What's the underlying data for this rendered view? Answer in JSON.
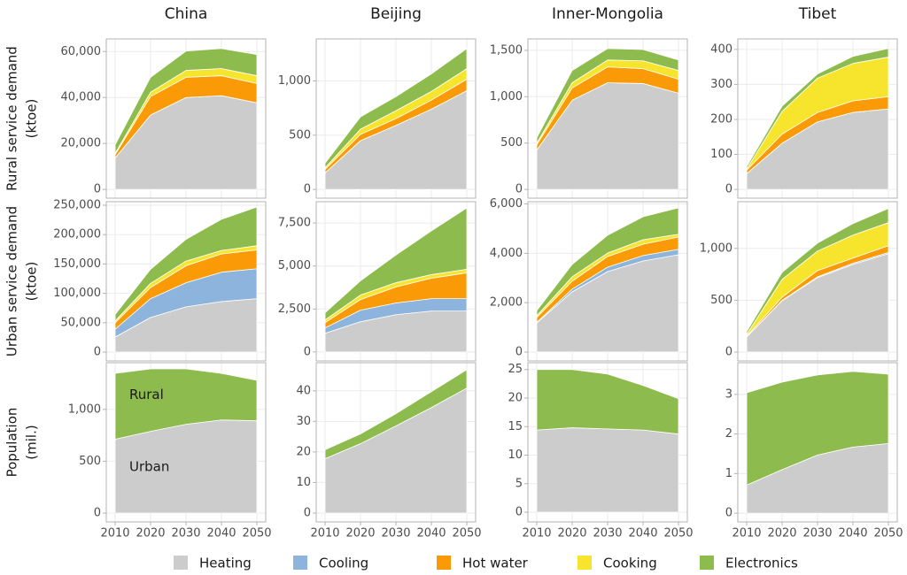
{
  "legend": [
    {
      "name": "Heating",
      "color": "#cccccc"
    },
    {
      "name": "Cooling",
      "color": "#8db4dc"
    },
    {
      "name": "Hot water",
      "color": "#fa9a06"
    },
    {
      "name": "Cooking",
      "color": "#f6e52c"
    },
    {
      "name": "Electronics",
      "color": "#8dbb4d"
    }
  ],
  "chart_data": [
    {
      "type": "area",
      "title": "China",
      "ylabel": [
        "Rural service demand",
        "(ktoe)"
      ],
      "x": [
        2010,
        2020,
        2030,
        2040,
        2050
      ],
      "xlim": [
        2007.5,
        2052.5
      ],
      "xticks": [
        2010,
        2020,
        2030,
        2040,
        2050
      ],
      "ylim": [
        -3800,
        65500
      ],
      "yticks": [
        0,
        {
          "value": 20000,
          "label": "20,000"
        },
        {
          "value": 40000,
          "label": "40,000"
        },
        {
          "value": 60000,
          "label": "60,000"
        }
      ],
      "grid": true,
      "series": [
        {
          "color": "#cccccc",
          "values": [
            13700,
            32400,
            40000,
            40800,
            37700
          ]
        },
        {
          "color": "#8db4dc",
          "values": [
            0,
            0,
            0,
            0,
            0
          ]
        },
        {
          "color": "#fa9a06",
          "values": [
            1500,
            8000,
            8800,
            8700,
            8400
          ]
        },
        {
          "color": "#f6e52c",
          "values": [
            500,
            1900,
            3000,
            3100,
            3400
          ]
        },
        {
          "color": "#8dbb4d",
          "values": [
            3700,
            6500,
            8400,
            8700,
            9200
          ]
        }
      ]
    },
    {
      "type": "area",
      "title": "Beijing",
      "x": [
        2010,
        2020,
        2030,
        2040,
        2050
      ],
      "xlim": [
        2007.5,
        2052.5
      ],
      "xticks": [
        2010,
        2020,
        2030,
        2040,
        2050
      ],
      "ylim": [
        -80,
        1387
      ],
      "yticks": [
        0,
        500,
        {
          "value": 1000,
          "label": "1,000"
        }
      ],
      "grid": true,
      "series": [
        {
          "color": "#cccccc",
          "values": [
            153,
            450,
            590,
            740,
            910
          ]
        },
        {
          "color": "#8db4dc",
          "values": [
            0,
            0,
            0,
            0,
            0
          ]
        },
        {
          "color": "#fa9a06",
          "values": [
            32,
            58,
            63,
            83,
            106
          ]
        },
        {
          "color": "#f6e52c",
          "values": [
            15,
            48,
            73,
            80,
            97
          ]
        },
        {
          "color": "#8dbb4d",
          "values": [
            42,
            113,
            129,
            162,
            185
          ]
        }
      ]
    },
    {
      "type": "area",
      "title": "Inner-Mongolia",
      "x": [
        2010,
        2020,
        2030,
        2040,
        2050
      ],
      "xlim": [
        2007.5,
        2052.5
      ],
      "xticks": [
        2010,
        2020,
        2030,
        2040,
        2050
      ],
      "ylim": [
        -94,
        1623
      ],
      "yticks": [
        0,
        500,
        {
          "value": 1000,
          "label": "1,000"
        },
        {
          "value": 1500,
          "label": "1,500"
        }
      ],
      "grid": true,
      "series": [
        {
          "color": "#cccccc",
          "values": [
            425,
            962,
            1151,
            1142,
            1038
          ]
        },
        {
          "color": "#8db4dc",
          "values": [
            0,
            0,
            0,
            0,
            0
          ]
        },
        {
          "color": "#fa9a06",
          "values": [
            56,
            132,
            170,
            160,
            151
          ]
        },
        {
          "color": "#f6e52c",
          "values": [
            19,
            57,
            75,
            85,
            94
          ]
        },
        {
          "color": "#8dbb4d",
          "values": [
            57,
            132,
            123,
            122,
            113
          ]
        }
      ]
    },
    {
      "type": "area",
      "title": "Tibet",
      "x": [
        2010,
        2020,
        2030,
        2040,
        2050
      ],
      "xlim": [
        2007.5,
        2052.5
      ],
      "xticks": [
        2010,
        2020,
        2030,
        2040,
        2050
      ],
      "ylim": [
        -25,
        430
      ],
      "yticks": [
        0,
        100,
        200,
        300,
        400
      ],
      "grid": true,
      "series": [
        {
          "color": "#cccccc",
          "values": [
            45,
            132,
            193,
            220,
            230
          ]
        },
        {
          "color": "#8db4dc",
          "values": [
            0,
            0,
            0,
            0,
            0
          ]
        },
        {
          "color": "#fa9a06",
          "values": [
            10,
            26,
            27,
            33,
            35
          ]
        },
        {
          "color": "#f6e52c",
          "values": [
            3,
            65,
            98,
            107,
            113
          ]
        },
        {
          "color": "#8dbb4d",
          "values": [
            7,
            15,
            12,
            20,
            25
          ]
        }
      ]
    },
    {
      "type": "area",
      "ylabel": [
        "Urban service demand",
        "(ktoe)"
      ],
      "x": [
        2010,
        2020,
        2030,
        2040,
        2050
      ],
      "xlim": [
        2007.5,
        2052.5
      ],
      "xticks": [
        2010,
        2020,
        2030,
        2040,
        2050
      ],
      "ylim": [
        -15000,
        256000
      ],
      "yticks": [
        0,
        {
          "value": 50000,
          "label": "50,000"
        },
        {
          "value": 100000,
          "label": "100,000"
        },
        {
          "value": 150000,
          "label": "150,000"
        },
        {
          "value": 200000,
          "label": "200,000"
        },
        {
          "value": 250000,
          "label": "250,000"
        }
      ],
      "grid": true,
      "series": [
        {
          "color": "#cccccc",
          "values": [
            25700,
            59000,
            77000,
            86000,
            91000
          ]
        },
        {
          "color": "#8db4dc",
          "values": [
            13300,
            32000,
            41000,
            50000,
            51000
          ]
        },
        {
          "color": "#fa9a06",
          "values": [
            11000,
            19000,
            29000,
            31000,
            32000
          ]
        },
        {
          "color": "#f6e52c",
          "values": [
            3000,
            7000,
            8000,
            6000,
            7000
          ]
        },
        {
          "color": "#8dbb4d",
          "values": [
            11000,
            24000,
            37000,
            53000,
            66000
          ]
        }
      ]
    },
    {
      "type": "area",
      "x": [
        2010,
        2020,
        2030,
        2040,
        2050
      ],
      "xlim": [
        2007.5,
        2052.5
      ],
      "xticks": [
        2010,
        2020,
        2030,
        2040,
        2050
      ],
      "ylim": [
        -520,
        8740
      ],
      "yticks": [
        0,
        {
          "value": 2500,
          "label": "2,500"
        },
        {
          "value": 5000,
          "label": "5,000"
        },
        {
          "value": 7500,
          "label": "7,500"
        }
      ],
      "grid": true,
      "series": [
        {
          "color": "#cccccc",
          "values": [
            1090,
            1760,
            2170,
            2380,
            2380
          ]
        },
        {
          "color": "#8db4dc",
          "values": [
            310,
            670,
            680,
            720,
            720
          ]
        },
        {
          "color": "#fa9a06",
          "values": [
            310,
            620,
            930,
            1190,
            1500
          ]
        },
        {
          "color": "#f6e52c",
          "values": [
            150,
            260,
            250,
            210,
            210
          ]
        },
        {
          "color": "#8dbb4d",
          "values": [
            420,
            830,
            1610,
            2540,
            3570
          ]
        }
      ]
    },
    {
      "type": "area",
      "x": [
        2010,
        2020,
        2030,
        2040,
        2050
      ],
      "xlim": [
        2007.5,
        2052.5
      ],
      "xticks": [
        2010,
        2020,
        2030,
        2040,
        2050
      ],
      "ylim": [
        -360,
        6090
      ],
      "yticks": [
        0,
        {
          "value": 2000,
          "label": "2,000"
        },
        {
          "value": 4000,
          "label": "4,000"
        },
        {
          "value": 6000,
          "label": "6,000"
        }
      ],
      "grid": true,
      "series": [
        {
          "color": "#cccccc",
          "values": [
            1180,
            2440,
            3260,
            3690,
            3940
          ]
        },
        {
          "color": "#8db4dc",
          "values": [
            20,
            110,
            180,
            220,
            220
          ]
        },
        {
          "color": "#fa9a06",
          "values": [
            200,
            320,
            430,
            460,
            500
          ]
        },
        {
          "color": "#f6e52c",
          "values": [
            70,
            180,
            140,
            180,
            110
          ]
        },
        {
          "color": "#8dbb4d",
          "values": [
            210,
            500,
            720,
            930,
            1070
          ]
        }
      ]
    },
    {
      "type": "area",
      "x": [
        2010,
        2020,
        2030,
        2040,
        2050
      ],
      "xlim": [
        2007.5,
        2052.5
      ],
      "xticks": [
        2010,
        2020,
        2030,
        2040,
        2050
      ],
      "ylim": [
        -85,
        1450
      ],
      "yticks": [
        0,
        500,
        {
          "value": 1000,
          "label": "1,000"
        }
      ],
      "grid": true,
      "series": [
        {
          "color": "#cccccc",
          "values": [
            145,
            496,
            718,
            846,
            949
          ]
        },
        {
          "color": "#8db4dc",
          "values": [
            0,
            4,
            8,
            10,
            12
          ]
        },
        {
          "color": "#fa9a06",
          "values": [
            9,
            30,
            60,
            50,
            65
          ]
        },
        {
          "color": "#f6e52c",
          "values": [
            17,
            171,
            188,
            222,
            222
          ]
        },
        {
          "color": "#8dbb4d",
          "values": [
            26,
            68,
            77,
            111,
            137
          ]
        }
      ]
    },
    {
      "type": "area",
      "ylabel": [
        "Population",
        "(mil.)"
      ],
      "x": [
        2010,
        2020,
        2030,
        2040,
        2050
      ],
      "xlim": [
        2007.5,
        2052.5
      ],
      "xticks": [
        2010,
        2020,
        2030,
        2040,
        2050
      ],
      "ylim": [
        -85,
        1450
      ],
      "yticks": [
        0,
        500,
        {
          "value": 1000,
          "label": "1,000"
        }
      ],
      "grid": true,
      "series": [
        {
          "name": "Urban",
          "color": "#cccccc",
          "values": [
            712,
            788,
            856,
            898,
            890
          ]
        },
        {
          "name": "Rural",
          "color": "#8dbb4d",
          "values": [
            635,
            602,
            534,
            449,
            390
          ]
        }
      ]
    },
    {
      "type": "area",
      "x": [
        2010,
        2020,
        2030,
        2040,
        2050
      ],
      "xlim": [
        2007.5,
        2052.5
      ],
      "xticks": [
        2010,
        2020,
        2030,
        2040,
        2050
      ],
      "ylim": [
        -2.9,
        49.2
      ],
      "yticks": [
        0,
        10,
        20,
        30,
        40
      ],
      "grid": true,
      "series": [
        {
          "color": "#cccccc",
          "values": [
            17.8,
            22.7,
            28.5,
            34.5,
            40.9
          ]
        },
        {
          "color": "#8dbb4d",
          "values": [
            2.9,
            3.2,
            4.0,
            5.2,
            6.0
          ]
        }
      ]
    },
    {
      "type": "area",
      "x": [
        2010,
        2020,
        2030,
        2040,
        2050
      ],
      "xlim": [
        2007.5,
        2052.5
      ],
      "xticks": [
        2010,
        2020,
        2030,
        2040,
        2050
      ],
      "ylim": [
        -1.7,
        26.2
      ],
      "yticks": [
        0,
        5,
        10,
        15,
        20,
        25
      ],
      "grid": true,
      "series": [
        {
          "color": "#cccccc",
          "values": [
            14.4,
            14.8,
            14.6,
            14.4,
            13.7
          ]
        },
        {
          "color": "#8dbb4d",
          "values": [
            10.6,
            10.2,
            9.6,
            7.8,
            6.2
          ]
        }
      ]
    },
    {
      "type": "area",
      "x": [
        2010,
        2020,
        2030,
        2040,
        2050
      ],
      "xlim": [
        2007.5,
        2052.5
      ],
      "xticks": [
        2010,
        2020,
        2030,
        2040,
        2050
      ],
      "ylim": [
        -0.22,
        3.8
      ],
      "yticks": [
        0,
        1,
        2,
        3
      ],
      "grid": true,
      "series": [
        {
          "color": "#cccccc",
          "values": [
            0.71,
            1.1,
            1.47,
            1.67,
            1.76
          ]
        },
        {
          "color": "#8dbb4d",
          "values": [
            2.33,
            2.21,
            2.02,
            1.91,
            1.75
          ]
        }
      ]
    }
  ]
}
